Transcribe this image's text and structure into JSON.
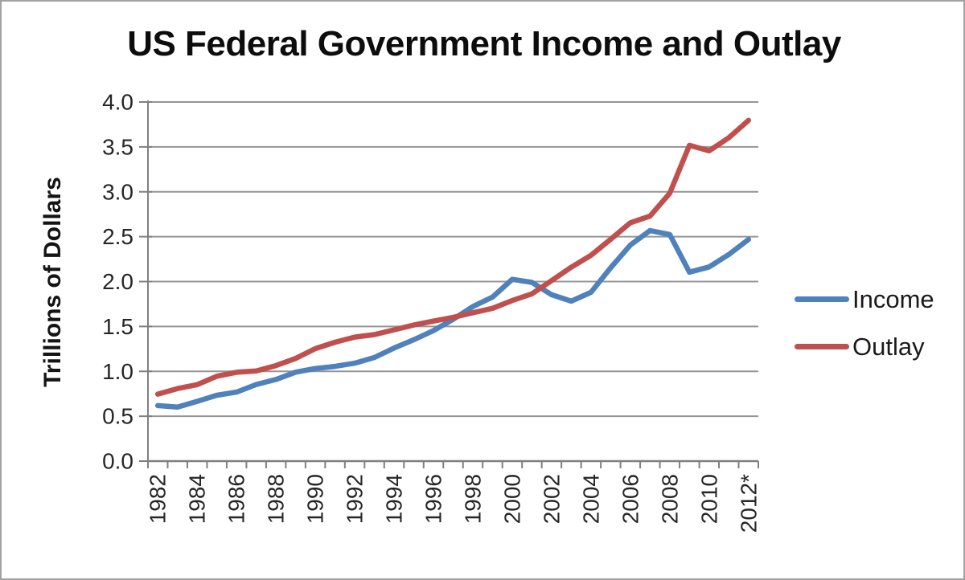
{
  "window": {
    "background_color": "#ffffff",
    "border_color": "#a2a2a2"
  },
  "chart_data": {
    "type": "line",
    "title": "US Federal Government Income and Outlay",
    "xlabel": "",
    "ylabel": "Trillions of Dollars",
    "ylim": [
      0.0,
      4.0
    ],
    "y_ticks": [
      "0.0",
      "0.5",
      "1.0",
      "1.5",
      "2.0",
      "2.5",
      "3.0",
      "3.5",
      "4.0"
    ],
    "grid": true,
    "gridline_color": "#959595",
    "axis_color": "#7f7f7f",
    "tick_label_color": "#262626",
    "legend_position": "right",
    "x_label_every": 2,
    "categories": [
      "1982",
      "1983",
      "1984",
      "1985",
      "1986",
      "1987",
      "1988",
      "1989",
      "1990",
      "1991",
      "1992",
      "1993",
      "1994",
      "1995",
      "1996",
      "1997",
      "1998",
      "1999",
      "2000",
      "2001",
      "2002",
      "2003",
      "2004",
      "2005",
      "2006",
      "2007",
      "2008",
      "2009",
      "2010",
      "2011",
      "2012*"
    ],
    "series": [
      {
        "name": "Income",
        "color": "#4F81BD",
        "values": [
          0.618,
          0.601,
          0.666,
          0.734,
          0.769,
          0.854,
          0.909,
          0.991,
          1.032,
          1.055,
          1.091,
          1.154,
          1.259,
          1.352,
          1.453,
          1.579,
          1.722,
          1.827,
          2.025,
          1.991,
          1.853,
          1.782,
          1.88,
          2.154,
          2.407,
          2.568,
          2.524,
          2.105,
          2.163,
          2.302,
          2.469
        ]
      },
      {
        "name": "Outlay",
        "color": "#C0504D",
        "values": [
          0.746,
          0.808,
          0.852,
          0.946,
          0.99,
          1.004,
          1.064,
          1.144,
          1.253,
          1.324,
          1.382,
          1.409,
          1.462,
          1.516,
          1.56,
          1.601,
          1.653,
          1.702,
          1.789,
          1.863,
          2.011,
          2.16,
          2.293,
          2.472,
          2.655,
          2.729,
          2.983,
          3.518,
          3.456,
          3.603,
          3.796
        ]
      }
    ]
  }
}
